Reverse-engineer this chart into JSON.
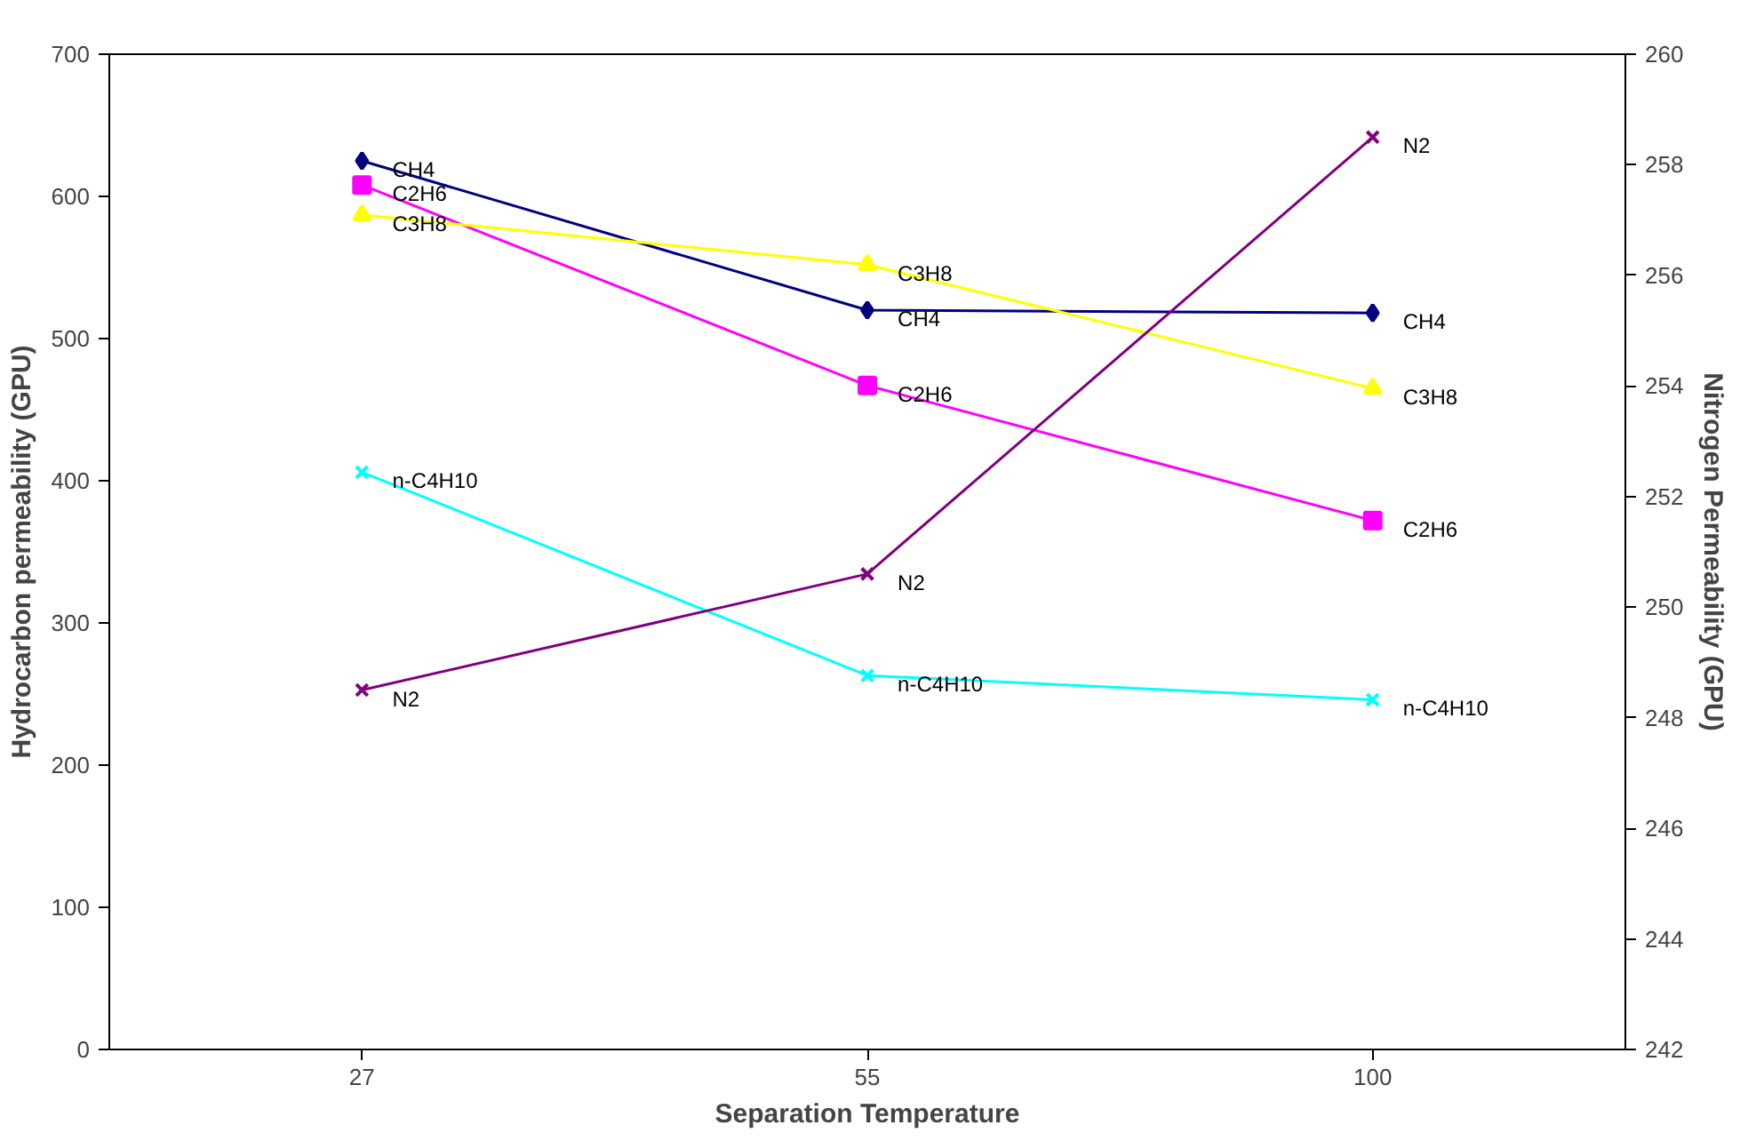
{
  "chart_data": {
    "type": "line",
    "xlabel": "Separation Temperature",
    "ylabel": "Hydrocarbon permeability (GPU)",
    "y2label": "Nitrogen Permeability (GPU)",
    "categories": [
      "27",
      "55",
      "100"
    ],
    "ylim": [
      0,
      700
    ],
    "yticks": [
      0,
      100,
      200,
      300,
      400,
      500,
      600,
      700
    ],
    "y2lim": [
      242,
      260
    ],
    "y2ticks": [
      242,
      244,
      246,
      248,
      250,
      252,
      254,
      256,
      258,
      260
    ],
    "grid": false,
    "series": [
      {
        "name": "CH4",
        "color": "#000080",
        "marker": "diamond",
        "values": [
          625,
          520,
          518
        ]
      },
      {
        "name": "C2H6",
        "color": "#ff00ff",
        "marker": "square",
        "values": [
          608,
          467,
          372
        ]
      },
      {
        "name": "C3H8",
        "color": "#ffff00",
        "marker": "triangle",
        "values": [
          587,
          552,
          465
        ]
      },
      {
        "name": "n-C4H10",
        "color": "#00ffff",
        "marker": "cross",
        "values": [
          406,
          263,
          246
        ]
      },
      {
        "name": "N2",
        "color": "#800080",
        "marker": "cross",
        "axis": "y2",
        "values": [
          248.5,
          250.6,
          258.5
        ]
      }
    ]
  }
}
